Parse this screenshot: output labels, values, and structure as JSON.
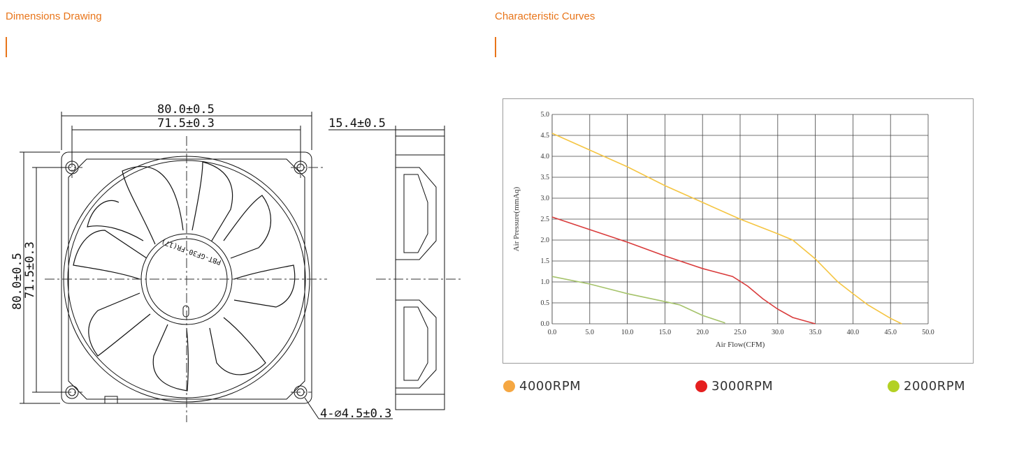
{
  "sections": {
    "left_title": "Dimensions Drawing",
    "right_title": "Characteristic Curves",
    "accent_color": "#e8751a"
  },
  "drawing": {
    "overall_width": "80.0±0.5",
    "hole_spacing_width": "71.5±0.3",
    "thickness": "15.4±0.5",
    "overall_height": "80.0±0.5",
    "hole_spacing_height": "71.5±0.3",
    "holes": "4-⌀4.5±0.3",
    "hub_marking": "PBT-GF30-FR(17)"
  },
  "chart_data": {
    "type": "line",
    "xlabel": "Air Flow(CFM)",
    "ylabel": "Air Pressure(mmAq)",
    "xlim": [
      0,
      50
    ],
    "ylim": [
      0,
      5
    ],
    "x_ticks": [
      "0.0",
      "5.0",
      "10.0",
      "15.0",
      "20.0",
      "25.0",
      "30.0",
      "35.0",
      "40.0",
      "45.0",
      "50.0"
    ],
    "y_ticks": [
      "0.0",
      "0.5",
      "1.0",
      "1.5",
      "2.0",
      "2.5",
      "3.0",
      "3.5",
      "4.0",
      "4.5",
      "5.0"
    ],
    "grid": true,
    "series": [
      {
        "name": "4000RPM",
        "color": "#f5c542",
        "x": [
          0,
          5,
          10,
          15,
          20,
          25,
          30,
          32,
          35,
          38,
          40,
          42,
          45,
          46.5
        ],
        "y": [
          4.55,
          4.15,
          3.75,
          3.3,
          2.9,
          2.5,
          2.15,
          2.0,
          1.55,
          1.0,
          0.72,
          0.45,
          0.13,
          0
        ]
      },
      {
        "name": "3000RPM",
        "color": "#d93b3b",
        "x": [
          0,
          5,
          10,
          15,
          20,
          24,
          26,
          28,
          30,
          32,
          35
        ],
        "y": [
          2.55,
          2.25,
          1.95,
          1.62,
          1.32,
          1.13,
          0.9,
          0.6,
          0.35,
          0.15,
          0
        ]
      },
      {
        "name": "2000RPM",
        "color": "#a5c36a",
        "x": [
          0,
          5,
          10,
          15,
          17,
          20,
          23
        ],
        "y": [
          1.13,
          0.95,
          0.72,
          0.53,
          0.45,
          0.2,
          0.02
        ]
      }
    ]
  },
  "legend": [
    {
      "label": "4000RPM",
      "color": "#f5a742"
    },
    {
      "label": "3000RPM",
      "color": "#e51f1f"
    },
    {
      "label": "2000RPM",
      "color": "#b3d124"
    }
  ]
}
